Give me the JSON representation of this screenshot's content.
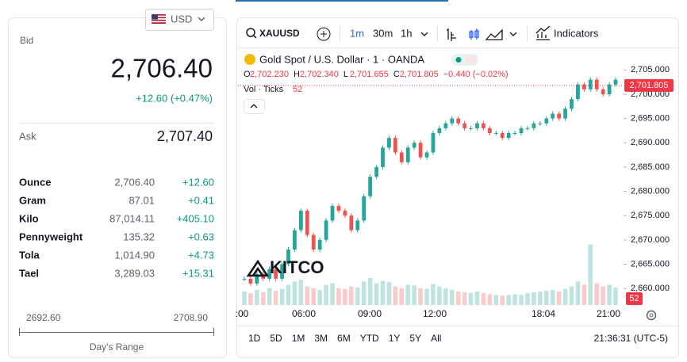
{
  "currency": "USD",
  "bid": {
    "label": "Bid",
    "value": "2,706.40",
    "change": "+12.60 (+0.47%)"
  },
  "ask": {
    "label": "Ask",
    "value": "2,707.40"
  },
  "units": [
    {
      "name": "Ounce",
      "price": "2,706.40",
      "change": "+12.60"
    },
    {
      "name": "Gram",
      "price": "87.01",
      "change": "+0.41"
    },
    {
      "name": "Kilo",
      "price": "87,014.11",
      "change": "+405.10"
    },
    {
      "name": "Pennyweight",
      "price": "135.32",
      "change": "+0.63"
    },
    {
      "name": "Tola",
      "price": "1,014.90",
      "change": "+4.73"
    },
    {
      "name": "Tael",
      "price": "3,289.03",
      "change": "+15.31"
    }
  ],
  "range": {
    "low": "2692.60",
    "high": "2708.90",
    "label": "Day's Range"
  },
  "toolbar": {
    "symbol": "XAUUSD",
    "intervals": [
      "1m",
      "30m",
      "1h"
    ],
    "indicators": "Indicators"
  },
  "legend": {
    "title": "Gold Spot / U.S. Dollar · 1 · OANDA",
    "ohlc": [
      {
        "key": "O",
        "value": "2,702.230"
      },
      {
        "key": "H",
        "value": "2,702.340"
      },
      {
        "key": "L",
        "value": "2,701.655"
      },
      {
        "key": "C",
        "value": "2,701.805"
      }
    ],
    "change": "−0.440 (−0.02%)",
    "vol_label": "Vol · Ticks",
    "vol_value": "52"
  },
  "watermark": "KITCO",
  "chart": {
    "type": "candlestick",
    "ylim": [
      2656.6,
      2708.8
    ],
    "yticks": [
      {
        "value": 2705,
        "label": "2,705.000"
      },
      {
        "value": 2700,
        "label": "2,700.000"
      },
      {
        "value": 2695,
        "label": "2,695.000"
      },
      {
        "value": 2690,
        "label": "2,690.000"
      },
      {
        "value": 2685,
        "label": "2,685.000"
      },
      {
        "value": 2680,
        "label": "2,680.000"
      },
      {
        "value": 2675,
        "label": "2,675.000"
      },
      {
        "value": 2670,
        "label": "2,670.000"
      },
      {
        "value": 2665,
        "label": "2,665.000"
      },
      {
        "value": 2660,
        "label": "2,660.000"
      }
    ],
    "last": {
      "value": 2701.805,
      "label": "2,701.805"
    },
    "volume_label": "52",
    "x_labels": [
      ":00",
      "06:00",
      "09:00",
      "12:00",
      "18:04",
      "21:00"
    ],
    "closes": [
      2662,
      2661,
      2663,
      2662,
      2664,
      2662,
      2665,
      2668,
      2672,
      2676,
      2671,
      2668,
      2670,
      2674,
      2677,
      2676,
      2675,
      2672,
      2674,
      2679,
      2683,
      2685,
      2689,
      2691,
      2688,
      2686,
      2689,
      2690,
      2687,
      2688,
      2692,
      2693,
      2694,
      2695,
      2694,
      2693,
      2693,
      2694,
      2693,
      2692,
      2692,
      2691,
      2692,
      2692,
      2693,
      2693,
      2694,
      2694,
      2695,
      2696,
      2695,
      2697,
      2699,
      2702,
      2701,
      2703,
      2701,
      2700,
      2702,
      2703
    ],
    "volumes": [
      40,
      35,
      45,
      38,
      50,
      42,
      48,
      60,
      70,
      75,
      55,
      50,
      45,
      60,
      65,
      50,
      48,
      55,
      52,
      70,
      80,
      65,
      72,
      68,
      55,
      50,
      60,
      58,
      50,
      48,
      62,
      55,
      50,
      45,
      40,
      38,
      36,
      40,
      35,
      32,
      30,
      28,
      30,
      32,
      30,
      35,
      38,
      40,
      42,
      45,
      40,
      48,
      55,
      70,
      60,
      180,
      65,
      55,
      60,
      52
    ],
    "volume_lim": [
      0,
      200
    ]
  },
  "ranges": [
    "1D",
    "5D",
    "1M",
    "3M",
    "6M",
    "YTD",
    "1Y",
    "5Y",
    "All"
  ],
  "clock": "21:36:31 (UTC-5)"
}
